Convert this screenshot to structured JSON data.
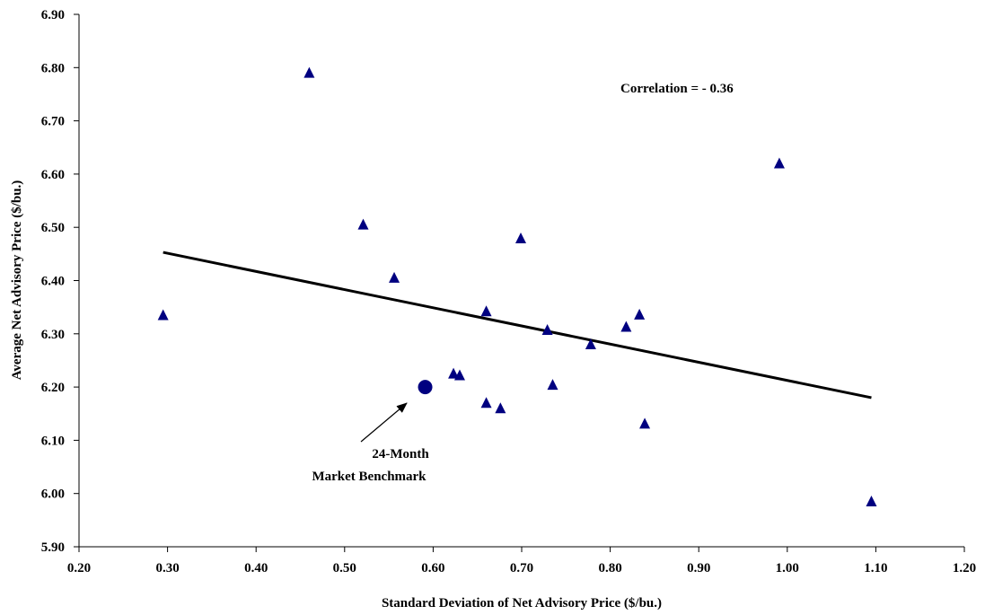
{
  "chart_data": {
    "type": "scatter",
    "title": "",
    "xlabel": "Standard Deviation of Net Advisory Price ($/bu.)",
    "ylabel": "Average Net Advisory Price ($/bu.)",
    "xlim": [
      0.2,
      1.2
    ],
    "ylim": [
      5.9,
      6.9
    ],
    "x_ticks": [
      "0.20",
      "0.30",
      "0.40",
      "0.50",
      "0.60",
      "0.70",
      "0.80",
      "0.90",
      "1.00",
      "1.10",
      "1.20"
    ],
    "y_ticks": [
      "5.90",
      "6.00",
      "6.10",
      "6.20",
      "6.30",
      "6.40",
      "6.50",
      "6.60",
      "6.70",
      "6.80",
      "6.90"
    ],
    "grid": false,
    "legend": "none",
    "marker_color": "#000080",
    "line_color": "#000000",
    "series": [
      {
        "marker": "triangle",
        "points": [
          {
            "x": 0.295,
            "y": 6.335
          },
          {
            "x": 0.46,
            "y": 6.79
          },
          {
            "x": 0.521,
            "y": 6.505
          },
          {
            "x": 0.556,
            "y": 6.405
          },
          {
            "x": 0.623,
            "y": 6.225
          },
          {
            "x": 0.63,
            "y": 6.222
          },
          {
            "x": 0.66,
            "y": 6.342
          },
          {
            "x": 0.66,
            "y": 6.17
          },
          {
            "x": 0.676,
            "y": 6.16
          },
          {
            "x": 0.699,
            "y": 6.479
          },
          {
            "x": 0.729,
            "y": 6.307
          },
          {
            "x": 0.735,
            "y": 6.204
          },
          {
            "x": 0.778,
            "y": 6.28
          },
          {
            "x": 0.818,
            "y": 6.313
          },
          {
            "x": 0.833,
            "y": 6.336
          },
          {
            "x": 0.839,
            "y": 6.131
          },
          {
            "x": 0.991,
            "y": 6.62
          },
          {
            "x": 1.095,
            "y": 5.985
          }
        ]
      },
      {
        "marker": "circle",
        "points": [
          {
            "x": 0.591,
            "y": 6.2
          }
        ]
      }
    ],
    "trendline": {
      "x": [
        0.295,
        1.095
      ],
      "y": [
        6.453,
        6.18
      ]
    },
    "annotations": {
      "correlation": "Correlation = - 0.36",
      "benchmark_line1": "24-Month",
      "benchmark_line2": "Market Benchmark"
    }
  }
}
